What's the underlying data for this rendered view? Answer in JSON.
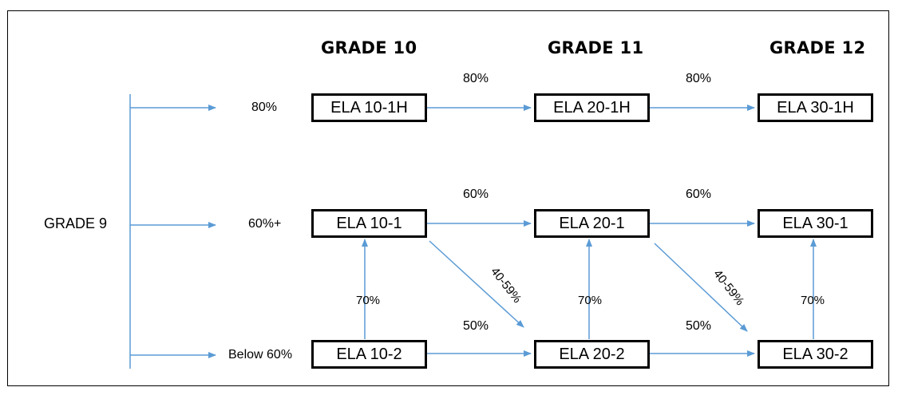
{
  "grade_headers": {
    "g10": "GRADE 10",
    "g11": "GRADE 11",
    "g12": "GRADE 12"
  },
  "start_label": "GRADE 9",
  "entry_labels": {
    "top": "80%",
    "mid": "60%+",
    "bottom": "Below 60%"
  },
  "courses": {
    "c10_1h": "ELA 10-1H",
    "c20_1h": "ELA 20-1H",
    "c30_1h": "ELA 30-1H",
    "c10_1": "ELA 10-1",
    "c20_1": "ELA 20-1",
    "c30_1": "ELA 30-1",
    "c10_2": "ELA 10-2",
    "c20_2": "ELA 20-2",
    "c30_2": "ELA 30-2"
  },
  "transitions": {
    "t1h_a": "80%",
    "t1h_b": "80%",
    "t1_a": "60%",
    "t1_b": "60%",
    "t2_a": "50%",
    "t2_b": "50%",
    "up_10": "70%",
    "up_20": "70%",
    "up_30": "70%",
    "diag_a": "40-59%",
    "diag_b": "40-59%"
  },
  "colors": {
    "arrow": "#5b9bd5",
    "box_border": "#000000",
    "frame": "#000000"
  }
}
